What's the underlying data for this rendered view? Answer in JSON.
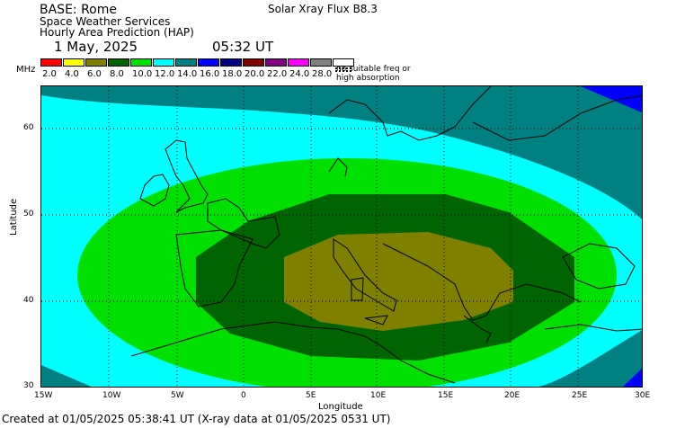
{
  "header": {
    "base": "BASE: Rome",
    "org": "Space Weather Services",
    "product": "Hourly Area Prediction (HAP)",
    "date": "1 May, 2025",
    "time": "05:32 UT",
    "flux": "Solar Xray Flux B8.3"
  },
  "legend": {
    "unit": "MHz",
    "labels": [
      "2.0",
      "4.0",
      "6.0",
      "8.0",
      "10.0",
      "12.0",
      "14.0",
      "16.0",
      "18.0",
      "20.0",
      "22.0",
      "24.0",
      "28.0"
    ],
    "colors": [
      "#ff0000",
      "#ffff00",
      "#808000",
      "#006400",
      "#00e000",
      "#00ffff",
      "#008080",
      "#0000ff",
      "#000080",
      "#800000",
      "#800080",
      "#ff00ff",
      "#808080"
    ],
    "no_freq_note": [
      "no suitable freq or",
      "high absorption"
    ]
  },
  "axes": {
    "ylabel": "Latitude",
    "xlabel": "Longitude",
    "yticks": [
      "60",
      "50",
      "40",
      "30"
    ],
    "xticks": [
      "15W",
      "10W",
      "5W",
      "0",
      "5E",
      "10E",
      "15E",
      "20E",
      "25E",
      "30E"
    ]
  },
  "footer": "Created at 01/05/2025 05:38:41 UT (X-ray data at 01/05/2025 0531 UT)",
  "map_bands": [
    {
      "freq": "6.0",
      "color": "#808000"
    },
    {
      "freq": "8.0",
      "color": "#006400"
    },
    {
      "freq": "10.0",
      "color": "#00e000"
    },
    {
      "freq": "12.0",
      "color": "#00ffff"
    },
    {
      "freq": "14.0",
      "color": "#008080"
    },
    {
      "freq": "16.0",
      "color": "#0000ff"
    }
  ]
}
